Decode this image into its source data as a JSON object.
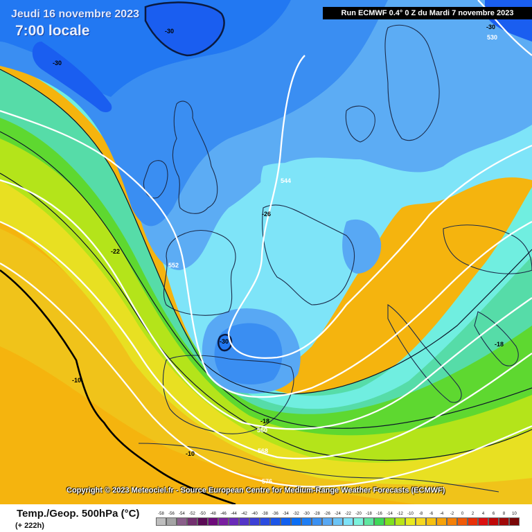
{
  "header": {
    "date": "Jeudi 16 novembre 2023",
    "time": "7:00 locale",
    "run": "Run ECMWF 0.4° 0 Z du Mardi 7 novembre 2023"
  },
  "copyright": "Copyright © 2023 Meteociel.fr - Source European Centre for Medium-Range Weather Forecasts (ECMWF)",
  "legend": {
    "title": "Temp./Geop. 500hPa (°C)",
    "lead_time": "(+ 222h)",
    "scale": [
      {
        "value": "-58",
        "color": "#bebebe"
      },
      {
        "value": "-56",
        "color": "#a4a4a4"
      },
      {
        "value": "-54",
        "color": "#8a5f8a"
      },
      {
        "value": "-52",
        "color": "#73306f"
      },
      {
        "value": "-50",
        "color": "#5a0a55"
      },
      {
        "value": "-48",
        "color": "#6e0a7a"
      },
      {
        "value": "-46",
        "color": "#7a1fa0"
      },
      {
        "value": "-44",
        "color": "#6a2ab8"
      },
      {
        "value": "-42",
        "color": "#5434c8"
      },
      {
        "value": "-40",
        "color": "#3c3fd6"
      },
      {
        "value": "-38",
        "color": "#2a4be0"
      },
      {
        "value": "-36",
        "color": "#1c55e8"
      },
      {
        "value": "-34",
        "color": "#1060f0"
      },
      {
        "value": "-32",
        "color": "#0a6ef5"
      },
      {
        "value": "-30",
        "color": "#1e7ef5"
      },
      {
        "value": "-28",
        "color": "#3a90f2"
      },
      {
        "value": "-26",
        "color": "#58a8f4"
      },
      {
        "value": "-24",
        "color": "#6cc4f6"
      },
      {
        "value": "-22",
        "color": "#7ee2f8"
      },
      {
        "value": "-20",
        "color": "#7cf2dc"
      },
      {
        "value": "-18",
        "color": "#5ee6a0"
      },
      {
        "value": "-16",
        "color": "#3ed858"
      },
      {
        "value": "-14",
        "color": "#7ee020"
      },
      {
        "value": "-12",
        "color": "#b8e418"
      },
      {
        "value": "-10",
        "color": "#e8ea20"
      },
      {
        "value": "-8",
        "color": "#f6d820"
      },
      {
        "value": "-6",
        "color": "#f6c010"
      },
      {
        "value": "-4",
        "color": "#f6a20a"
      },
      {
        "value": "-2",
        "color": "#f48008"
      },
      {
        "value": "0",
        "color": "#f05a08"
      },
      {
        "value": "2",
        "color": "#e83008"
      },
      {
        "value": "4",
        "color": "#dc1010"
      },
      {
        "value": "6",
        "color": "#c00808"
      },
      {
        "value": "8",
        "color": "#a00808"
      },
      {
        "value": "10",
        "color": "#7a0606"
      }
    ]
  },
  "contour_labels": [
    {
      "text": "-30",
      "kind": "temp"
    },
    {
      "text": "-30",
      "kind": "temp"
    },
    {
      "text": "-30",
      "kind": "temp"
    },
    {
      "text": "-30",
      "kind": "temp"
    },
    {
      "text": "-26",
      "kind": "temp"
    },
    {
      "text": "-22",
      "kind": "temp"
    },
    {
      "text": "-18",
      "kind": "temp"
    },
    {
      "text": "-18",
      "kind": "temp"
    },
    {
      "text": "-10",
      "kind": "temp"
    },
    {
      "text": "-10",
      "kind": "temp"
    },
    {
      "text": "530",
      "kind": "geop"
    },
    {
      "text": "544",
      "kind": "geop"
    },
    {
      "text": "552",
      "kind": "geop"
    },
    {
      "text": "560",
      "kind": "geop"
    },
    {
      "text": "568",
      "kind": "geop"
    },
    {
      "text": "576",
      "kind": "geop"
    }
  ]
}
